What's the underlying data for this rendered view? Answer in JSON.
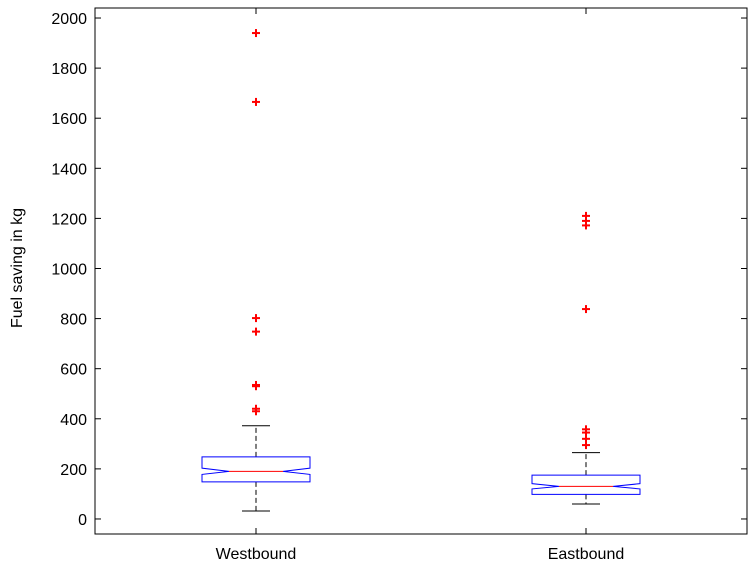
{
  "chart_data": {
    "type": "boxplot",
    "title": "",
    "xlabel": "",
    "ylabel": "Fuel saving in kg",
    "ylim": [
      -60,
      2040
    ],
    "yticks": [
      0,
      200,
      400,
      600,
      800,
      1000,
      1200,
      1400,
      1600,
      1800,
      2000
    ],
    "grid": false,
    "notched": true,
    "categories": [
      "Westbound",
      "Eastbound"
    ],
    "boxes": [
      {
        "name": "Westbound",
        "whisker_low": 32,
        "q1": 148,
        "median": 190,
        "q3": 248,
        "notch_low": 178,
        "notch_high": 203,
        "whisker_high": 372,
        "outliers": [
          430,
          440,
          530,
          535,
          748,
          802,
          1665,
          1940
        ]
      },
      {
        "name": "Eastbound",
        "whisker_low": 60,
        "q1": 98,
        "median": 130,
        "q3": 175,
        "notch_low": 120,
        "notch_high": 141,
        "whisker_high": 265,
        "outliers": [
          295,
          320,
          345,
          358,
          838,
          1172,
          1190,
          1210
        ]
      }
    ],
    "colors": {
      "box": "#0000ff",
      "median": "#ff0000",
      "whisker": "#000000",
      "outlier": "#ff0000"
    }
  }
}
